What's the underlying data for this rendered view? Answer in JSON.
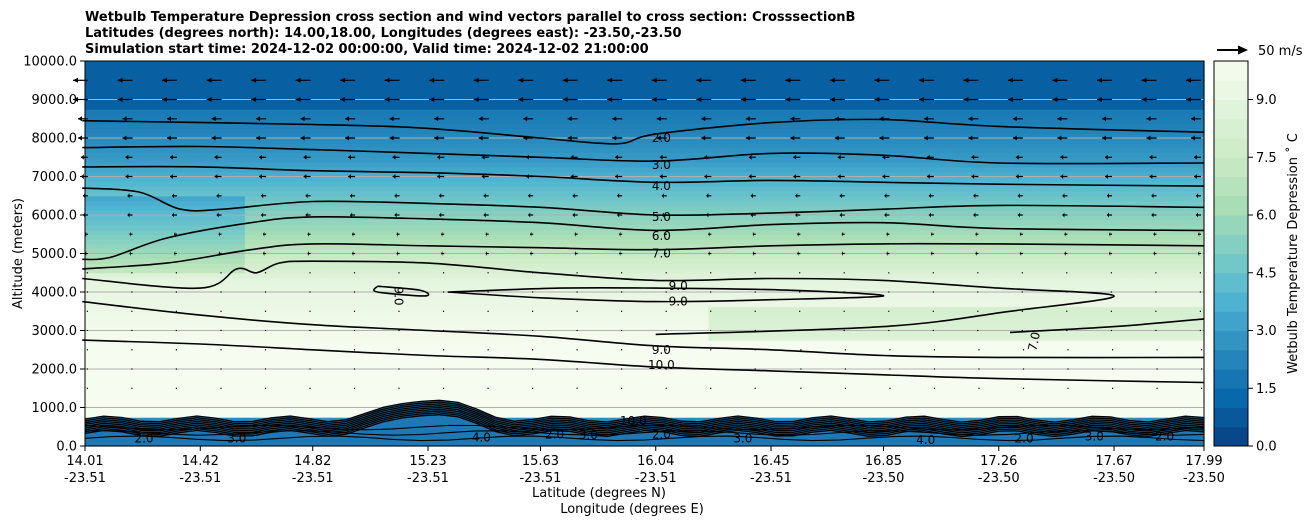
{
  "chart_data": {
    "type": "contour",
    "title_lines": [
      "Wetbulb Temperature Depression cross section and wind vectors parallel to cross section: CrosssectionB",
      "Latitudes (degrees north): 14.00,18.00, Longitudes (degrees east): -23.50,-23.50",
      "Simulation start time: 2024-12-02 00:00:00, Valid time: 2024-12-02 21:00:00"
    ],
    "ylabel": "Altitude (meters)",
    "xlabel_lat": "Latitude (degrees N)",
    "xlabel_lon": "Longitude (degrees E)",
    "ylim": [
      0,
      10000
    ],
    "y_ticks": [
      "0.0",
      "1000.0",
      "2000.0",
      "3000.0",
      "4000.0",
      "5000.0",
      "6000.0",
      "7000.0",
      "8000.0",
      "9000.0",
      "10000.0"
    ],
    "x_lat_ticks": [
      "14.01",
      "14.42",
      "14.82",
      "15.23",
      "15.63",
      "16.04",
      "16.45",
      "16.85",
      "17.26",
      "17.67",
      "17.99"
    ],
    "x_lon_ticks": [
      "-23.51",
      "-23.51",
      "-23.51",
      "-23.51",
      "-23.51",
      "-23.51",
      "-23.51",
      "-23.50",
      "-23.50",
      "-23.50",
      "-23.50"
    ],
    "horizontal_grid": true,
    "colorbar": {
      "label": "Wetbulb Temperature Depression ˚ C",
      "range": [
        0,
        10
      ],
      "ticks": [
        "0.0",
        "1.5",
        "3.0",
        "4.5",
        "6.0",
        "7.5",
        "9.0"
      ],
      "colormap": "GnBu_r",
      "colors": [
        "#084081",
        "#0868ac",
        "#2b8cbe",
        "#4eb3d3",
        "#7bccc4",
        "#a8ddb5",
        "#ccebc5",
        "#e0f3db",
        "#f7fcf0"
      ]
    },
    "vector_key": {
      "label": "50 m/s",
      "speed": 50
    },
    "contour_labels": [
      "2.0",
      "3.0",
      "4.0",
      "5.0",
      "6.0",
      "7.0",
      "9.0",
      "9.0",
      "9.0",
      "10.0",
      "9.0",
      "7.0",
      "10.0",
      "2.0",
      "3.0",
      "4.0",
      "3.0",
      "2.0",
      "3.0",
      "4.0",
      "2.0",
      "3.0",
      "2.0",
      "2.0"
    ],
    "contour_lines": [
      {
        "level": 2,
        "points": [
          [
            14.0,
            8450
          ],
          [
            14.82,
            8350
          ],
          [
            15.23,
            8250
          ],
          [
            15.63,
            8000
          ],
          [
            15.9,
            7850
          ],
          [
            16.04,
            8100
          ],
          [
            16.45,
            8400
          ],
          [
            16.85,
            8480
          ],
          [
            17.26,
            8300
          ],
          [
            17.99,
            8150
          ]
        ]
      },
      {
        "level": 3,
        "points": [
          [
            14.0,
            7750
          ],
          [
            14.42,
            7780
          ],
          [
            14.82,
            7700
          ],
          [
            15.23,
            7600
          ],
          [
            15.63,
            7500
          ],
          [
            16.04,
            7400
          ],
          [
            16.45,
            7600
          ],
          [
            16.85,
            7550
          ],
          [
            17.26,
            7350
          ],
          [
            17.99,
            7350
          ]
        ]
      },
      {
        "level": 4,
        "points": [
          [
            14.0,
            7250
          ],
          [
            14.42,
            7250
          ],
          [
            14.82,
            7150
          ],
          [
            15.23,
            7100
          ],
          [
            15.63,
            7000
          ],
          [
            16.04,
            6850
          ],
          [
            16.45,
            6900
          ],
          [
            16.85,
            6850
          ],
          [
            17.26,
            6800
          ],
          [
            17.99,
            6750
          ]
        ]
      },
      {
        "level": 5,
        "points": [
          [
            14.0,
            6700
          ],
          [
            14.2,
            6600
          ],
          [
            14.35,
            6150
          ],
          [
            14.5,
            6150
          ],
          [
            14.82,
            6350
          ],
          [
            15.23,
            6300
          ],
          [
            15.63,
            6200
          ],
          [
            16.04,
            6000
          ],
          [
            16.45,
            6050
          ],
          [
            16.85,
            6150
          ],
          [
            17.26,
            6250
          ],
          [
            17.99,
            6200
          ]
        ]
      },
      {
        "level": 6,
        "points": [
          [
            14.0,
            4850
          ],
          [
            14.1,
            4900
          ],
          [
            14.3,
            5400
          ],
          [
            14.6,
            5800
          ],
          [
            14.82,
            5950
          ],
          [
            15.23,
            5900
          ],
          [
            15.63,
            5800
          ],
          [
            16.04,
            5600
          ],
          [
            16.45,
            5750
          ],
          [
            16.85,
            5800
          ],
          [
            17.26,
            5650
          ],
          [
            17.99,
            5600
          ]
        ]
      },
      {
        "level": 7,
        "points": [
          [
            14.0,
            4600
          ],
          [
            14.3,
            4750
          ],
          [
            14.6,
            5100
          ],
          [
            14.82,
            5250
          ],
          [
            15.23,
            5200
          ],
          [
            15.63,
            5150
          ],
          [
            16.04,
            5100
          ],
          [
            16.45,
            5200
          ],
          [
            16.85,
            5250
          ],
          [
            17.26,
            5250
          ],
          [
            17.99,
            5200
          ]
        ]
      },
      {
        "level": 9,
        "points": [
          [
            14.0,
            4350
          ],
          [
            14.42,
            4100
          ],
          [
            14.55,
            4600
          ],
          [
            14.62,
            4500
          ],
          [
            14.7,
            4750
          ],
          [
            14.82,
            4800
          ],
          [
            15.23,
            4750
          ],
          [
            15.63,
            4500
          ],
          [
            16.04,
            4300
          ],
          [
            16.45,
            4350
          ],
          [
            16.85,
            4300
          ],
          [
            17.26,
            4100
          ],
          [
            17.67,
            3900
          ],
          [
            17.3,
            3500
          ],
          [
            16.85,
            3100
          ],
          [
            16.04,
            2900
          ]
        ]
      },
      {
        "level": 9,
        "points": [
          [
            15.3,
            4000
          ],
          [
            15.7,
            4100
          ],
          [
            16.04,
            4100
          ],
          [
            16.5,
            4050
          ],
          [
            16.85,
            3900
          ],
          [
            16.45,
            3800
          ],
          [
            16.04,
            3750
          ],
          [
            15.63,
            3850
          ],
          [
            15.3,
            4000
          ]
        ]
      },
      {
        "level": 9,
        "points": [
          [
            15.05,
            4150
          ],
          [
            15.2,
            4050
          ],
          [
            15.22,
            3900
          ],
          [
            15.05,
            4000
          ],
          [
            15.05,
            4150
          ]
        ]
      },
      {
        "level": 9,
        "points": [
          [
            14.0,
            3750
          ],
          [
            14.42,
            3400
          ],
          [
            14.82,
            3150
          ],
          [
            15.23,
            3000
          ],
          [
            15.63,
            2850
          ],
          [
            16.04,
            2600
          ],
          [
            16.45,
            2500
          ],
          [
            16.85,
            2350
          ],
          [
            17.26,
            2300
          ],
          [
            17.99,
            2300
          ]
        ]
      },
      {
        "level": 10,
        "points": [
          [
            14.0,
            2750
          ],
          [
            14.42,
            2650
          ],
          [
            14.82,
            2500
          ],
          [
            15.23,
            2350
          ],
          [
            15.63,
            2250
          ],
          [
            16.04,
            2050
          ],
          [
            16.45,
            1950
          ],
          [
            16.85,
            1850
          ],
          [
            17.26,
            1750
          ],
          [
            17.99,
            1650
          ]
        ]
      },
      {
        "level": 7,
        "points": [
          [
            17.3,
            2950
          ],
          [
            17.67,
            3100
          ],
          [
            17.99,
            3300
          ]
        ]
      }
    ],
    "terrain_level_m": 700,
    "terrain_peak": {
      "lat": 15.23,
      "altitude_m": 1250
    },
    "wind_vectors": "parallel component, westward aloft (strongest near 9500 m), weak below 6000 m"
  }
}
